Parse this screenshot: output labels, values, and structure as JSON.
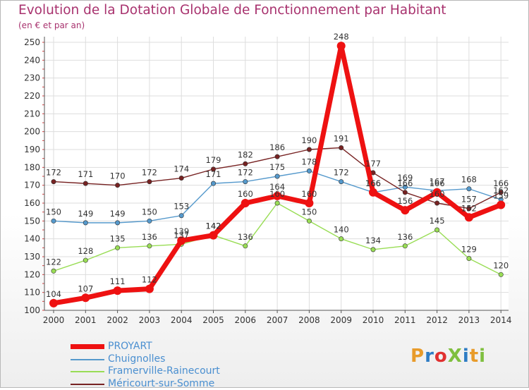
{
  "title": "Evolution de la Dotation Globale de Fonctionnement par Habitant",
  "subtitle": "(en € et par an)",
  "logo": {
    "text": "ProXiti",
    "colors": [
      "#e89b2a",
      "#2e7cc4",
      "#e03030",
      "#7fbf3f",
      "#2e7cc4",
      "#e89b2a",
      "#7fbf3f"
    ]
  },
  "chart_data": {
    "type": "line",
    "x": [
      "2000",
      "2001",
      "2002",
      "2003",
      "2004",
      "2005",
      "2006",
      "2007",
      "2008",
      "2009",
      "2010",
      "2011",
      "2012",
      "2013",
      "2014"
    ],
    "ylim": [
      100,
      250
    ],
    "yticks": [
      100,
      110,
      120,
      130,
      140,
      150,
      160,
      170,
      180,
      190,
      200,
      210,
      220,
      230,
      240,
      250
    ],
    "grid": true,
    "legend_position": "bottom-left",
    "series": [
      {
        "name": "PROYART",
        "color": "#ee1111",
        "values": [
          104,
          107,
          111,
          112,
          139,
          142,
          160,
          164,
          160,
          248,
          166,
          156,
          166,
          152,
          159
        ],
        "labels": [
          "104",
          "107",
          "111",
          "112",
          "139",
          "142",
          "160",
          "164",
          "160",
          "248",
          "166",
          "156",
          "166",
          "152",
          "159"
        ]
      },
      {
        "name": "Chuignolles",
        "color": "#5599cc",
        "values": [
          150,
          149,
          149,
          150,
          153,
          171,
          172,
          175,
          178,
          172,
          166,
          169,
          167,
          168,
          162
        ],
        "labels": [
          "150",
          "149",
          "149",
          "150",
          "153",
          "171",
          "172",
          "175",
          "178",
          "172",
          "166",
          "169",
          "167",
          "168",
          "162"
        ]
      },
      {
        "name": "Framerville-Rainecourt",
        "color": "#99dd55",
        "values": [
          122,
          128,
          135,
          136,
          137,
          142,
          136,
          160,
          150,
          140,
          134,
          136,
          145,
          129,
          120
        ],
        "labels": [
          "122",
          "128",
          "135",
          "136",
          "137",
          "142",
          "136",
          "160",
          "150",
          "140",
          "134",
          "136",
          "145",
          "129",
          "120"
        ]
      },
      {
        "name": "Méricourt-sur-Somme",
        "color": "#772222",
        "values": [
          172,
          171,
          170,
          172,
          174,
          179,
          182,
          186,
          190,
          191,
          177,
          166,
          160,
          157,
          166
        ],
        "labels": [
          "172",
          "171",
          "170",
          "172",
          "174",
          "179",
          "182",
          "186",
          "190",
          "191",
          "177",
          "166",
          "160",
          "157",
          "166"
        ]
      }
    ]
  }
}
